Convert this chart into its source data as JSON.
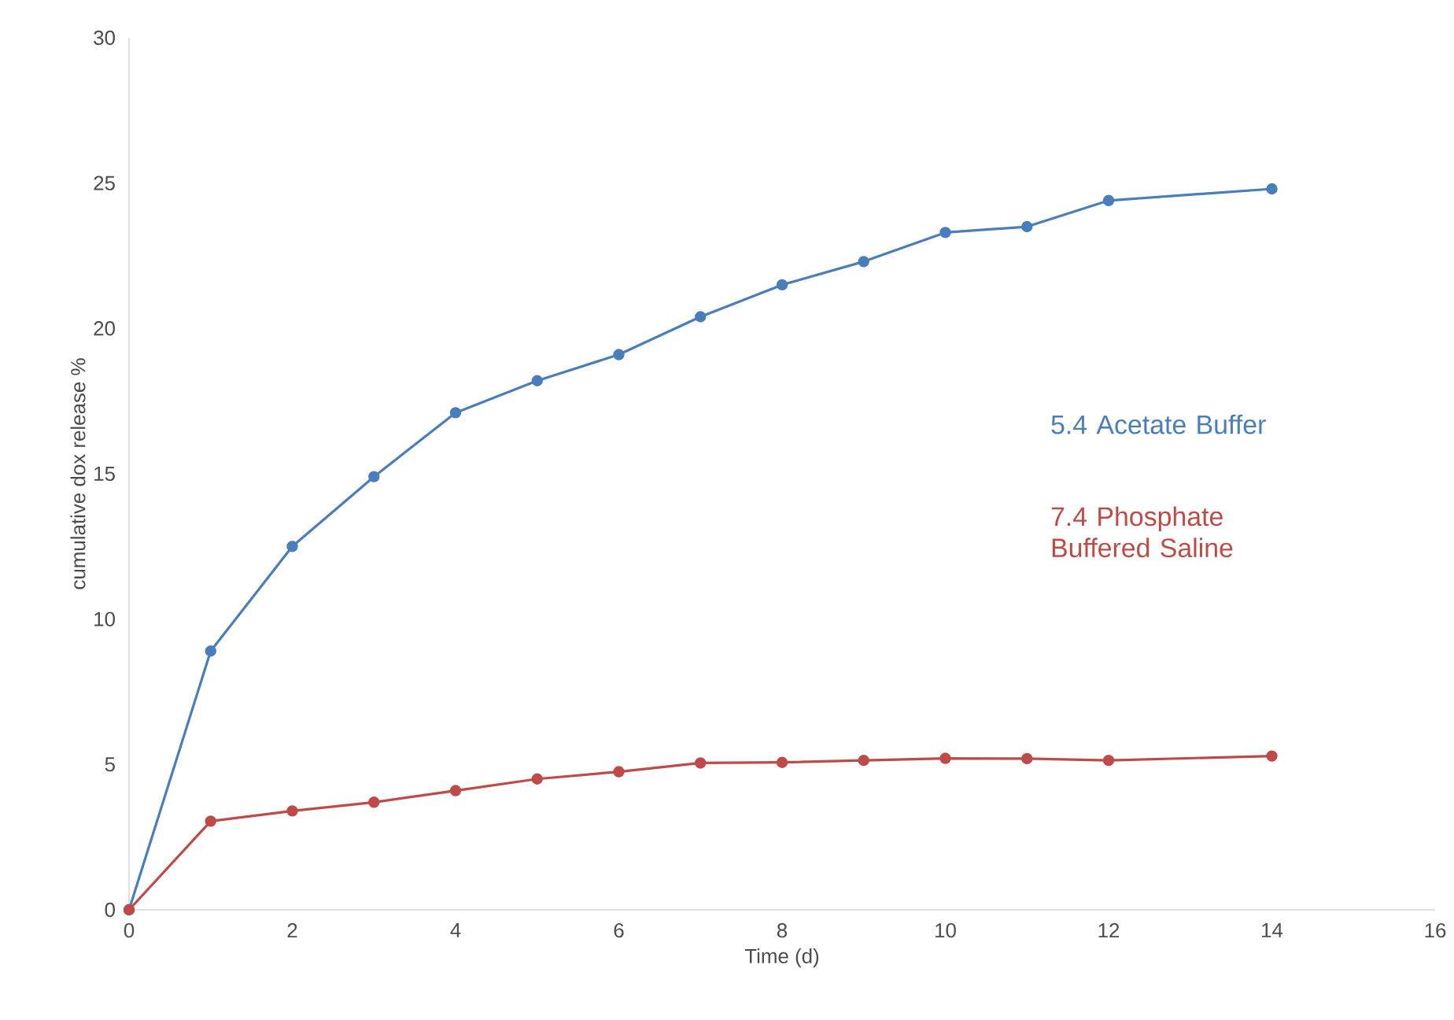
{
  "chart_data": {
    "type": "line",
    "xlabel": "Time (d)",
    "ylabel": "cumulative dox release  %",
    "x": [
      0,
      1,
      2,
      3,
      4,
      5,
      6,
      7,
      8,
      9,
      10,
      11,
      12,
      14
    ],
    "series": [
      {
        "name": "5.4   Acetate Buffer",
        "color": "#4a7ebb",
        "values": [
          0,
          8.9,
          12.5,
          14.9,
          17.1,
          18.2,
          19.1,
          20.4,
          21.5,
          22.3,
          23.3,
          23.5,
          24.4,
          24.8
        ]
      },
      {
        "name": "7.4   Phosphate Buffered Saline",
        "color": "#be4b48",
        "values": [
          0,
          3.05,
          3.4,
          3.7,
          4.1,
          4.5,
          4.75,
          5.05,
          5.07,
          5.14,
          5.21,
          5.2,
          5.14,
          5.29
        ]
      }
    ],
    "xlim": [
      0,
      16
    ],
    "xticks": [
      0,
      2,
      4,
      6,
      8,
      10,
      12,
      14,
      16
    ],
    "ylim": [
      0,
      30
    ],
    "yticks": [
      0,
      5,
      10,
      15,
      20,
      25,
      30
    ],
    "grid": false,
    "marker": "circle",
    "line_style": "solid"
  }
}
